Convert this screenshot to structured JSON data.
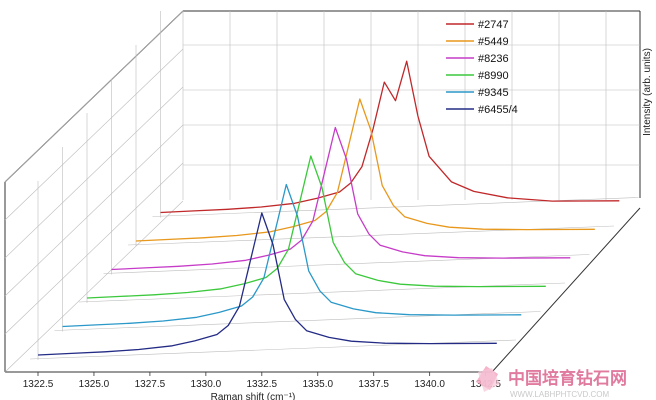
{
  "chart_data": {
    "type": "line",
    "title": "",
    "xlabel": "Raman shift (cm⁻¹)",
    "ylabel": "Intensity (arb. units)",
    "xlim": [
      1322.5,
      1343.5
    ],
    "x_ticks": [
      "1322.5",
      "1325.0",
      "1327.5",
      "1330.0",
      "1332.5",
      "1335.0",
      "1337.5",
      "1340.0",
      "1342.5"
    ],
    "legend_position": "top-right",
    "grid": true,
    "three_d": true,
    "x": [
      1322.5,
      1324.0,
      1325.5,
      1327.0,
      1328.5,
      1329.5,
      1330.5,
      1331.0,
      1331.5,
      1332.0,
      1332.5,
      1333.0,
      1333.5,
      1334.0,
      1334.5,
      1335.5,
      1336.5,
      1338.0,
      1340.0,
      1343.0
    ],
    "series": [
      {
        "name": "#2747",
        "color": "#c0282a",
        "values": [
          0.0,
          0.005,
          0.01,
          0.02,
          0.04,
          0.07,
          0.11,
          0.17,
          0.28,
          0.54,
          0.86,
          0.73,
          1.0,
          0.62,
          0.34,
          0.16,
          0.09,
          0.04,
          0.01,
          0.0
        ]
      },
      {
        "name": "#5449",
        "color": "#e8981c",
        "values": [
          0.0,
          0.005,
          0.01,
          0.02,
          0.04,
          0.07,
          0.11,
          0.17,
          0.3,
          0.62,
          0.94,
          0.72,
          0.34,
          0.2,
          0.12,
          0.07,
          0.04,
          0.02,
          0.01,
          0.0
        ]
      },
      {
        "name": "#8236",
        "color": "#c63cc8",
        "values": [
          0.0,
          0.005,
          0.01,
          0.02,
          0.04,
          0.07,
          0.11,
          0.17,
          0.3,
          0.62,
          0.94,
          0.72,
          0.34,
          0.2,
          0.12,
          0.07,
          0.04,
          0.02,
          0.01,
          0.0
        ]
      },
      {
        "name": "#8990",
        "color": "#3cc83c",
        "values": [
          0.0,
          0.005,
          0.01,
          0.02,
          0.04,
          0.07,
          0.11,
          0.17,
          0.3,
          0.62,
          0.94,
          0.72,
          0.34,
          0.2,
          0.12,
          0.07,
          0.04,
          0.02,
          0.01,
          0.0
        ]
      },
      {
        "name": "#9345",
        "color": "#2a98c8",
        "values": [
          0.0,
          0.005,
          0.01,
          0.02,
          0.04,
          0.07,
          0.11,
          0.17,
          0.3,
          0.62,
          0.94,
          0.72,
          0.34,
          0.2,
          0.12,
          0.07,
          0.04,
          0.02,
          0.01,
          0.0
        ]
      },
      {
        "name": "#6455/4",
        "color": "#232b85",
        "values": [
          0.0,
          0.005,
          0.01,
          0.02,
          0.04,
          0.07,
          0.11,
          0.17,
          0.3,
          0.62,
          0.94,
          0.72,
          0.34,
          0.2,
          0.12,
          0.07,
          0.04,
          0.02,
          0.01,
          0.0
        ]
      }
    ]
  },
  "watermark": {
    "text": "中国培育钻石网",
    "url": "WWW.LABHPHTCVD.COM"
  }
}
